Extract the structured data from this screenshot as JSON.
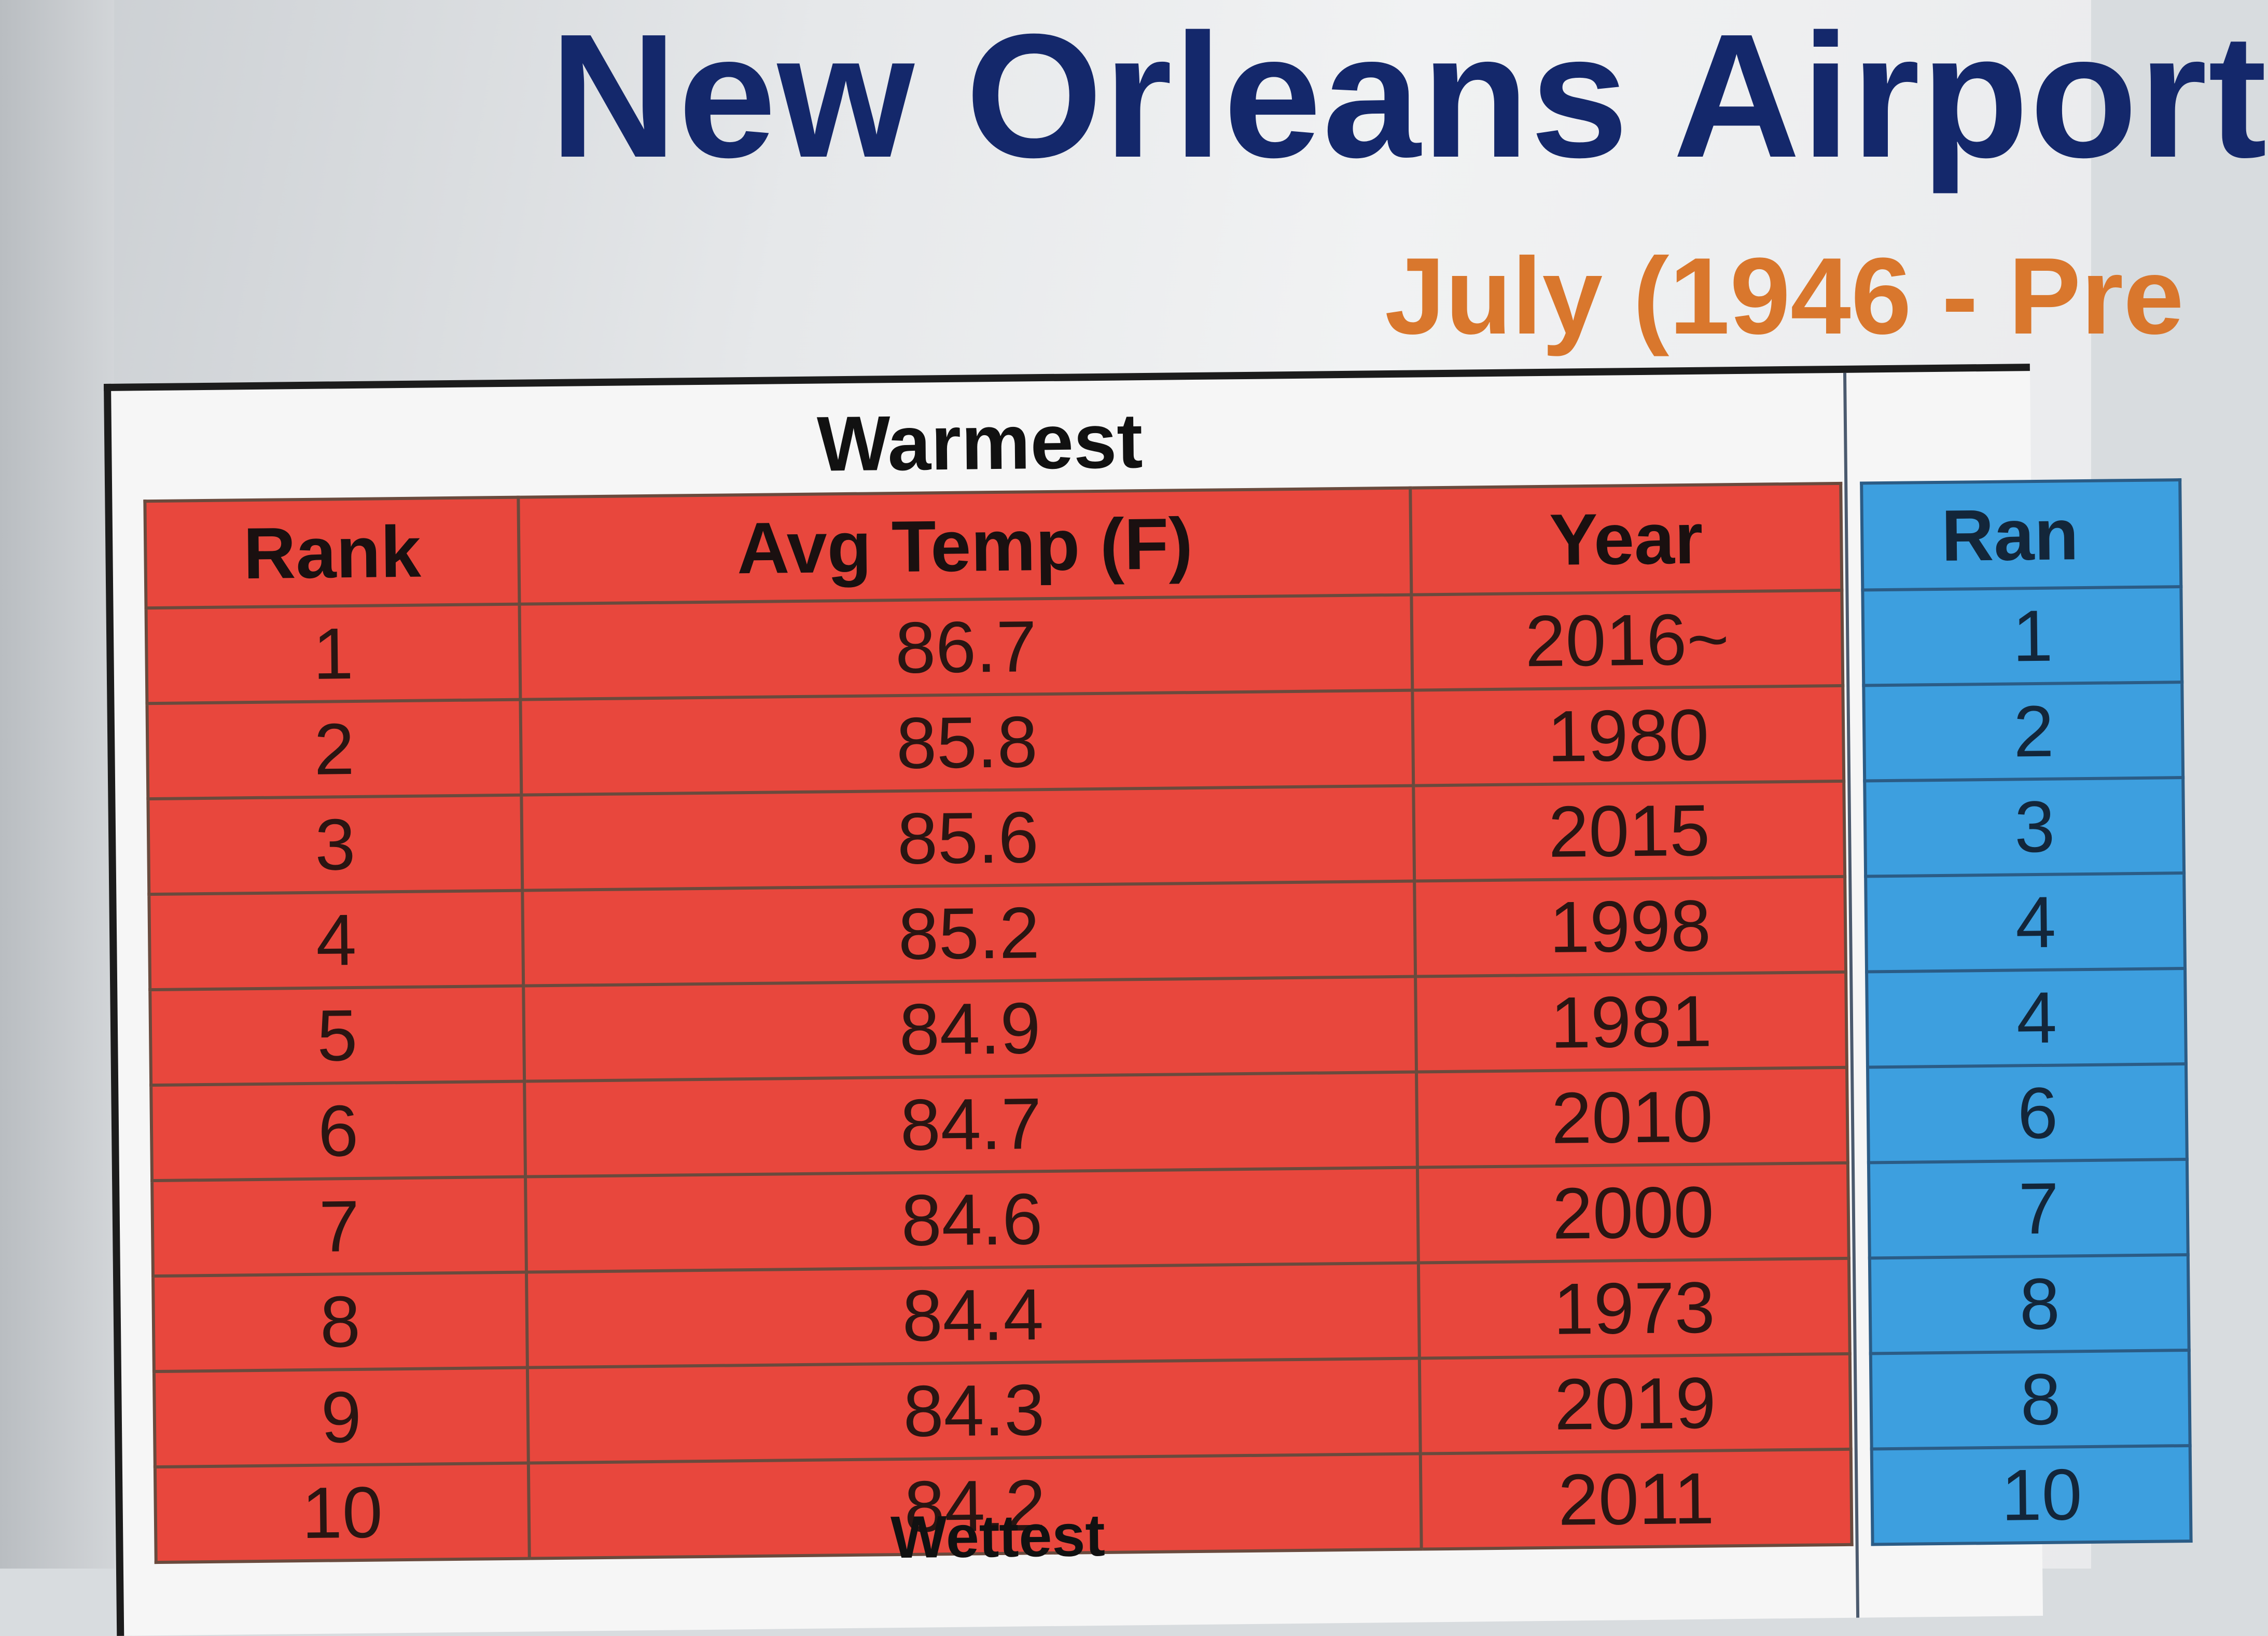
{
  "page": {
    "title": "New Orleans Airport",
    "subtitle": "July (1946 - Pre"
  },
  "warmest": {
    "heading": "Warmest",
    "columns": [
      "Rank",
      "Avg Temp (F)",
      "Year"
    ],
    "rows": [
      {
        "rank": "1",
        "temp": "86.7",
        "year": "2016~"
      },
      {
        "rank": "2",
        "temp": "85.8",
        "year": "1980"
      },
      {
        "rank": "3",
        "temp": "85.6",
        "year": "2015"
      },
      {
        "rank": "4",
        "temp": "85.2",
        "year": "1998"
      },
      {
        "rank": "5",
        "temp": "84.9",
        "year": "1981"
      },
      {
        "rank": "6",
        "temp": "84.7",
        "year": "2010"
      },
      {
        "rank": "7",
        "temp": "84.6",
        "year": "2000"
      },
      {
        "rank": "8",
        "temp": "84.4",
        "year": "1973"
      },
      {
        "rank": "9",
        "temp": "84.3",
        "year": "2019"
      },
      {
        "rank": "10",
        "temp": "84.2",
        "year": "2011"
      }
    ]
  },
  "coolest": {
    "column": "Ran",
    "ranks": [
      "1",
      "2",
      "3",
      "4",
      "4",
      "6",
      "7",
      "8",
      "8",
      "10"
    ]
  },
  "wettest": {
    "heading": "Wettest"
  },
  "colors": {
    "title": "#14286b",
    "subtitle": "#d9772d",
    "warm_fill": "#e8473d",
    "cool_fill": "#3d9fdf"
  }
}
